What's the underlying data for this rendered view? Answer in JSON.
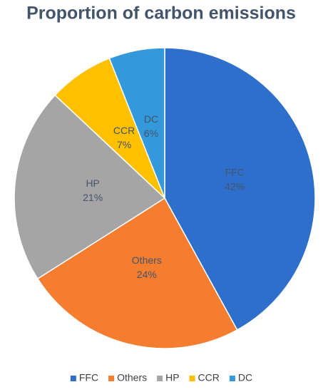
{
  "chart_data": {
    "type": "pie",
    "title": "Proportion of carbon emissions",
    "categories": [
      "FFC",
      "Others",
      "HP",
      "CCR",
      "DC"
    ],
    "values": [
      42,
      24,
      21,
      7,
      6
    ],
    "value_labels": [
      "42%",
      "24%",
      "21%",
      "7%",
      "6%"
    ],
    "colors": [
      "#2f6fcc",
      "#f47d30",
      "#a5a5a5",
      "#ffc000",
      "#3399db"
    ],
    "legend": "bottom"
  }
}
